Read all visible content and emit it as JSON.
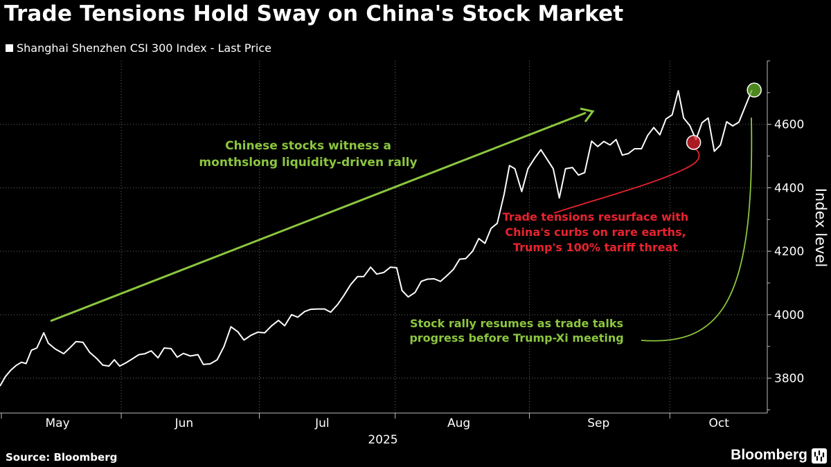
{
  "chart_data": {
    "type": "line",
    "title": "Trade Tensions Hold Sway on China's Stock Market",
    "legend": [
      "Shanghai Shenzhen CSI 300 Index - Last Price"
    ],
    "ylabel": "Index level",
    "xlabel": "2025",
    "ylim": [
      3690,
      4800
    ],
    "xlim": [
      0,
      1
    ],
    "yticks": [
      3800,
      4000,
      4200,
      4400,
      4600
    ],
    "months": [
      {
        "label": "May",
        "x": 0.075
      },
      {
        "label": "Jun",
        "x": 0.24
      },
      {
        "label": "Jul",
        "x": 0.42
      },
      {
        "label": "Aug",
        "x": 0.598
      },
      {
        "label": "Sep",
        "x": 0.78
      },
      {
        "label": "Oct",
        "x": 0.937
      }
    ],
    "month_dividers": [
      0.158,
      0.338,
      0.515,
      0.69,
      0.873
    ],
    "series": [
      {
        "name": "Shanghai Shenzhen CSI 300 Index - Last Price",
        "color": "#ffffff",
        "points": [
          [
            0.0,
            3775
          ],
          [
            0.007,
            3805
          ],
          [
            0.014,
            3825
          ],
          [
            0.021,
            3840
          ],
          [
            0.028,
            3850
          ],
          [
            0.034,
            3846
          ],
          [
            0.041,
            3888
          ],
          [
            0.048,
            3895
          ],
          [
            0.057,
            3943
          ],
          [
            0.063,
            3910
          ],
          [
            0.072,
            3892
          ],
          [
            0.083,
            3877
          ],
          [
            0.09,
            3893
          ],
          [
            0.099,
            3915
          ],
          [
            0.108,
            3913
          ],
          [
            0.117,
            3881
          ],
          [
            0.126,
            3862
          ],
          [
            0.134,
            3841
          ],
          [
            0.142,
            3838
          ],
          [
            0.149,
            3858
          ],
          [
            0.156,
            3838
          ],
          [
            0.164,
            3848
          ],
          [
            0.172,
            3860
          ],
          [
            0.181,
            3874
          ],
          [
            0.189,
            3877
          ],
          [
            0.197,
            3886
          ],
          [
            0.206,
            3864
          ],
          [
            0.214,
            3895
          ],
          [
            0.223,
            3893
          ],
          [
            0.231,
            3866
          ],
          [
            0.239,
            3878
          ],
          [
            0.248,
            3870
          ],
          [
            0.258,
            3874
          ],
          [
            0.265,
            3843
          ],
          [
            0.274,
            3845
          ],
          [
            0.283,
            3858
          ],
          [
            0.292,
            3900
          ],
          [
            0.301,
            3962
          ],
          [
            0.31,
            3946
          ],
          [
            0.318,
            3920
          ],
          [
            0.327,
            3935
          ],
          [
            0.336,
            3945
          ],
          [
            0.345,
            3943
          ],
          [
            0.354,
            3965
          ],
          [
            0.363,
            3982
          ],
          [
            0.371,
            3965
          ],
          [
            0.38,
            4000
          ],
          [
            0.388,
            3992
          ],
          [
            0.397,
            4010
          ],
          [
            0.405,
            4017
          ],
          [
            0.414,
            4018
          ],
          [
            0.423,
            4018
          ],
          [
            0.431,
            4008
          ],
          [
            0.44,
            4032
          ],
          [
            0.448,
            4060
          ],
          [
            0.457,
            4095
          ],
          [
            0.466,
            4120
          ],
          [
            0.474,
            4120
          ],
          [
            0.483,
            4150
          ],
          [
            0.491,
            4128
          ],
          [
            0.5,
            4133
          ],
          [
            0.509,
            4150
          ],
          [
            0.517,
            4148
          ],
          [
            0.524,
            4076
          ],
          [
            0.532,
            4056
          ],
          [
            0.541,
            4070
          ],
          [
            0.549,
            4105
          ],
          [
            0.557,
            4112
          ],
          [
            0.566,
            4113
          ],
          [
            0.574,
            4105
          ],
          [
            0.582,
            4122
          ],
          [
            0.591,
            4143
          ],
          [
            0.599,
            4175
          ],
          [
            0.607,
            4177
          ],
          [
            0.616,
            4200
          ],
          [
            0.624,
            4240
          ],
          [
            0.632,
            4225
          ],
          [
            0.64,
            4272
          ],
          [
            0.648,
            4288
          ],
          [
            0.657,
            4380
          ],
          [
            0.664,
            4470
          ],
          [
            0.671,
            4460
          ],
          [
            0.68,
            4388
          ],
          [
            0.688,
            4460
          ],
          [
            0.697,
            4494
          ],
          [
            0.705,
            4520
          ],
          [
            0.713,
            4490
          ],
          [
            0.721,
            4460
          ],
          [
            0.729,
            4368
          ],
          [
            0.737,
            4460
          ],
          [
            0.746,
            4464
          ],
          [
            0.754,
            4440
          ],
          [
            0.762,
            4448
          ],
          [
            0.771,
            4547
          ],
          [
            0.779,
            4530
          ],
          [
            0.787,
            4546
          ],
          [
            0.795,
            4535
          ],
          [
            0.803,
            4552
          ],
          [
            0.811,
            4503
          ],
          [
            0.819,
            4508
          ],
          [
            0.827,
            4523
          ],
          [
            0.836,
            4523
          ],
          [
            0.844,
            4565
          ],
          [
            0.852,
            4590
          ],
          [
            0.86,
            4567
          ],
          [
            0.868,
            4617
          ],
          [
            0.876,
            4630
          ],
          [
            0.884,
            4706
          ],
          [
            0.891,
            4620
          ],
          [
            0.899,
            4596
          ],
          [
            0.907,
            4552
          ],
          [
            0.915,
            4605
          ],
          [
            0.923,
            4620
          ],
          [
            0.931,
            4515
          ],
          [
            0.939,
            4535
          ],
          [
            0.947,
            4608
          ],
          [
            0.955,
            4595
          ],
          [
            0.963,
            4607
          ],
          [
            0.971,
            4655
          ],
          [
            0.98,
            4708
          ]
        ]
      }
    ],
    "markers": [
      {
        "name": "red-low-marker",
        "x": 0.904,
        "y": 4543,
        "color": "#e0242f"
      },
      {
        "name": "green-high-marker",
        "x": 0.983,
        "y": 4708,
        "color": "#67b52a"
      }
    ],
    "annotations": [
      {
        "name": "annotation-rally",
        "lines": [
          "Chinese stocks witness a",
          "monthslong liquidity-driven rally"
        ],
        "color": "#8cc63f"
      },
      {
        "name": "annotation-trade-tensions",
        "lines": [
          "Trade tensions resurface with",
          "China's curbs on rare earths,",
          "Trump's 100% tariff threat"
        ],
        "color": "#e8232f"
      },
      {
        "name": "annotation-rally-resumes",
        "lines": [
          "Stock rally resumes as trade talks",
          "progress before Trump-Xi meeting"
        ],
        "color": "#8cc63f"
      }
    ]
  },
  "colors": {
    "green": "#8cc63f",
    "red": "#e8232f",
    "grid": "#6a6a6a",
    "axis": "#bbbbbb"
  },
  "footer": {
    "source": "Source: Bloomberg",
    "brand": "Bloomberg"
  }
}
